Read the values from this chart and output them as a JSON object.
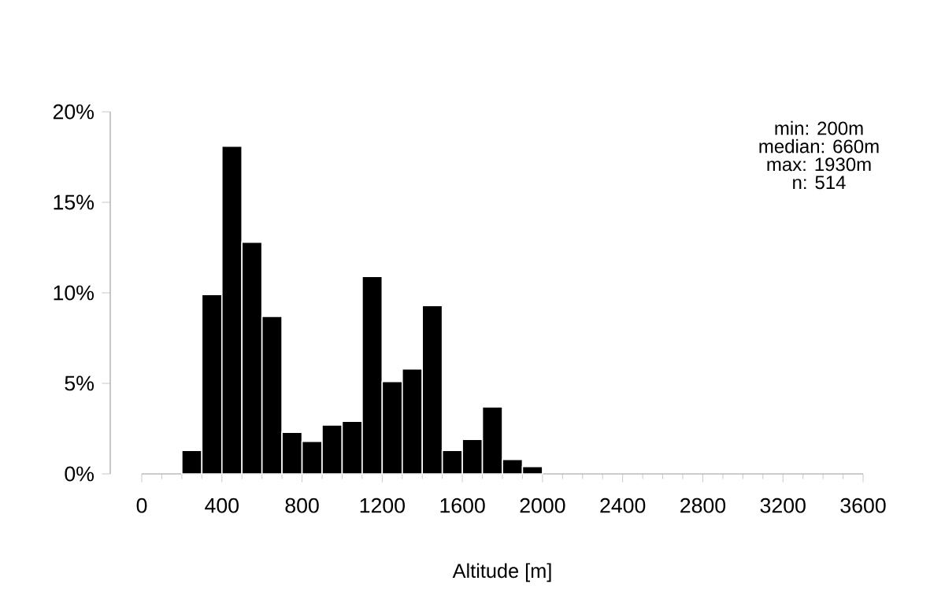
{
  "chart_data": {
    "type": "histogram",
    "xlabel": "Altitude [m]",
    "color": "#000000",
    "bins": [
      200,
      300,
      400,
      500,
      600,
      700,
      800,
      900,
      1000,
      1100,
      1200,
      1300,
      1400,
      1500,
      1600,
      1700,
      1800,
      1900,
      2000
    ],
    "values": [
      1.3,
      9.9,
      18.1,
      12.8,
      8.7,
      2.3,
      1.8,
      2.7,
      2.9,
      10.9,
      5.1,
      5.8,
      9.3,
      1.3,
      1.9,
      3.7,
      0.8,
      0.4
    ],
    "xlim": [
      0,
      3600
    ],
    "xticks": [
      0,
      400,
      800,
      1200,
      1600,
      2000,
      2400,
      2800,
      3200,
      3600
    ],
    "ylim": [
      0,
      20
    ],
    "yticks": [
      {
        "value": 0,
        "label": "0%"
      },
      {
        "value": 5,
        "label": "5%"
      },
      {
        "value": 10,
        "label": "10%"
      },
      {
        "value": 15,
        "label": "15%"
      },
      {
        "value": 20,
        "label": "20%"
      }
    ],
    "annotations": [
      "min: 200m",
      "median: 660m",
      "max: 1930m",
      "n:  514"
    ]
  }
}
